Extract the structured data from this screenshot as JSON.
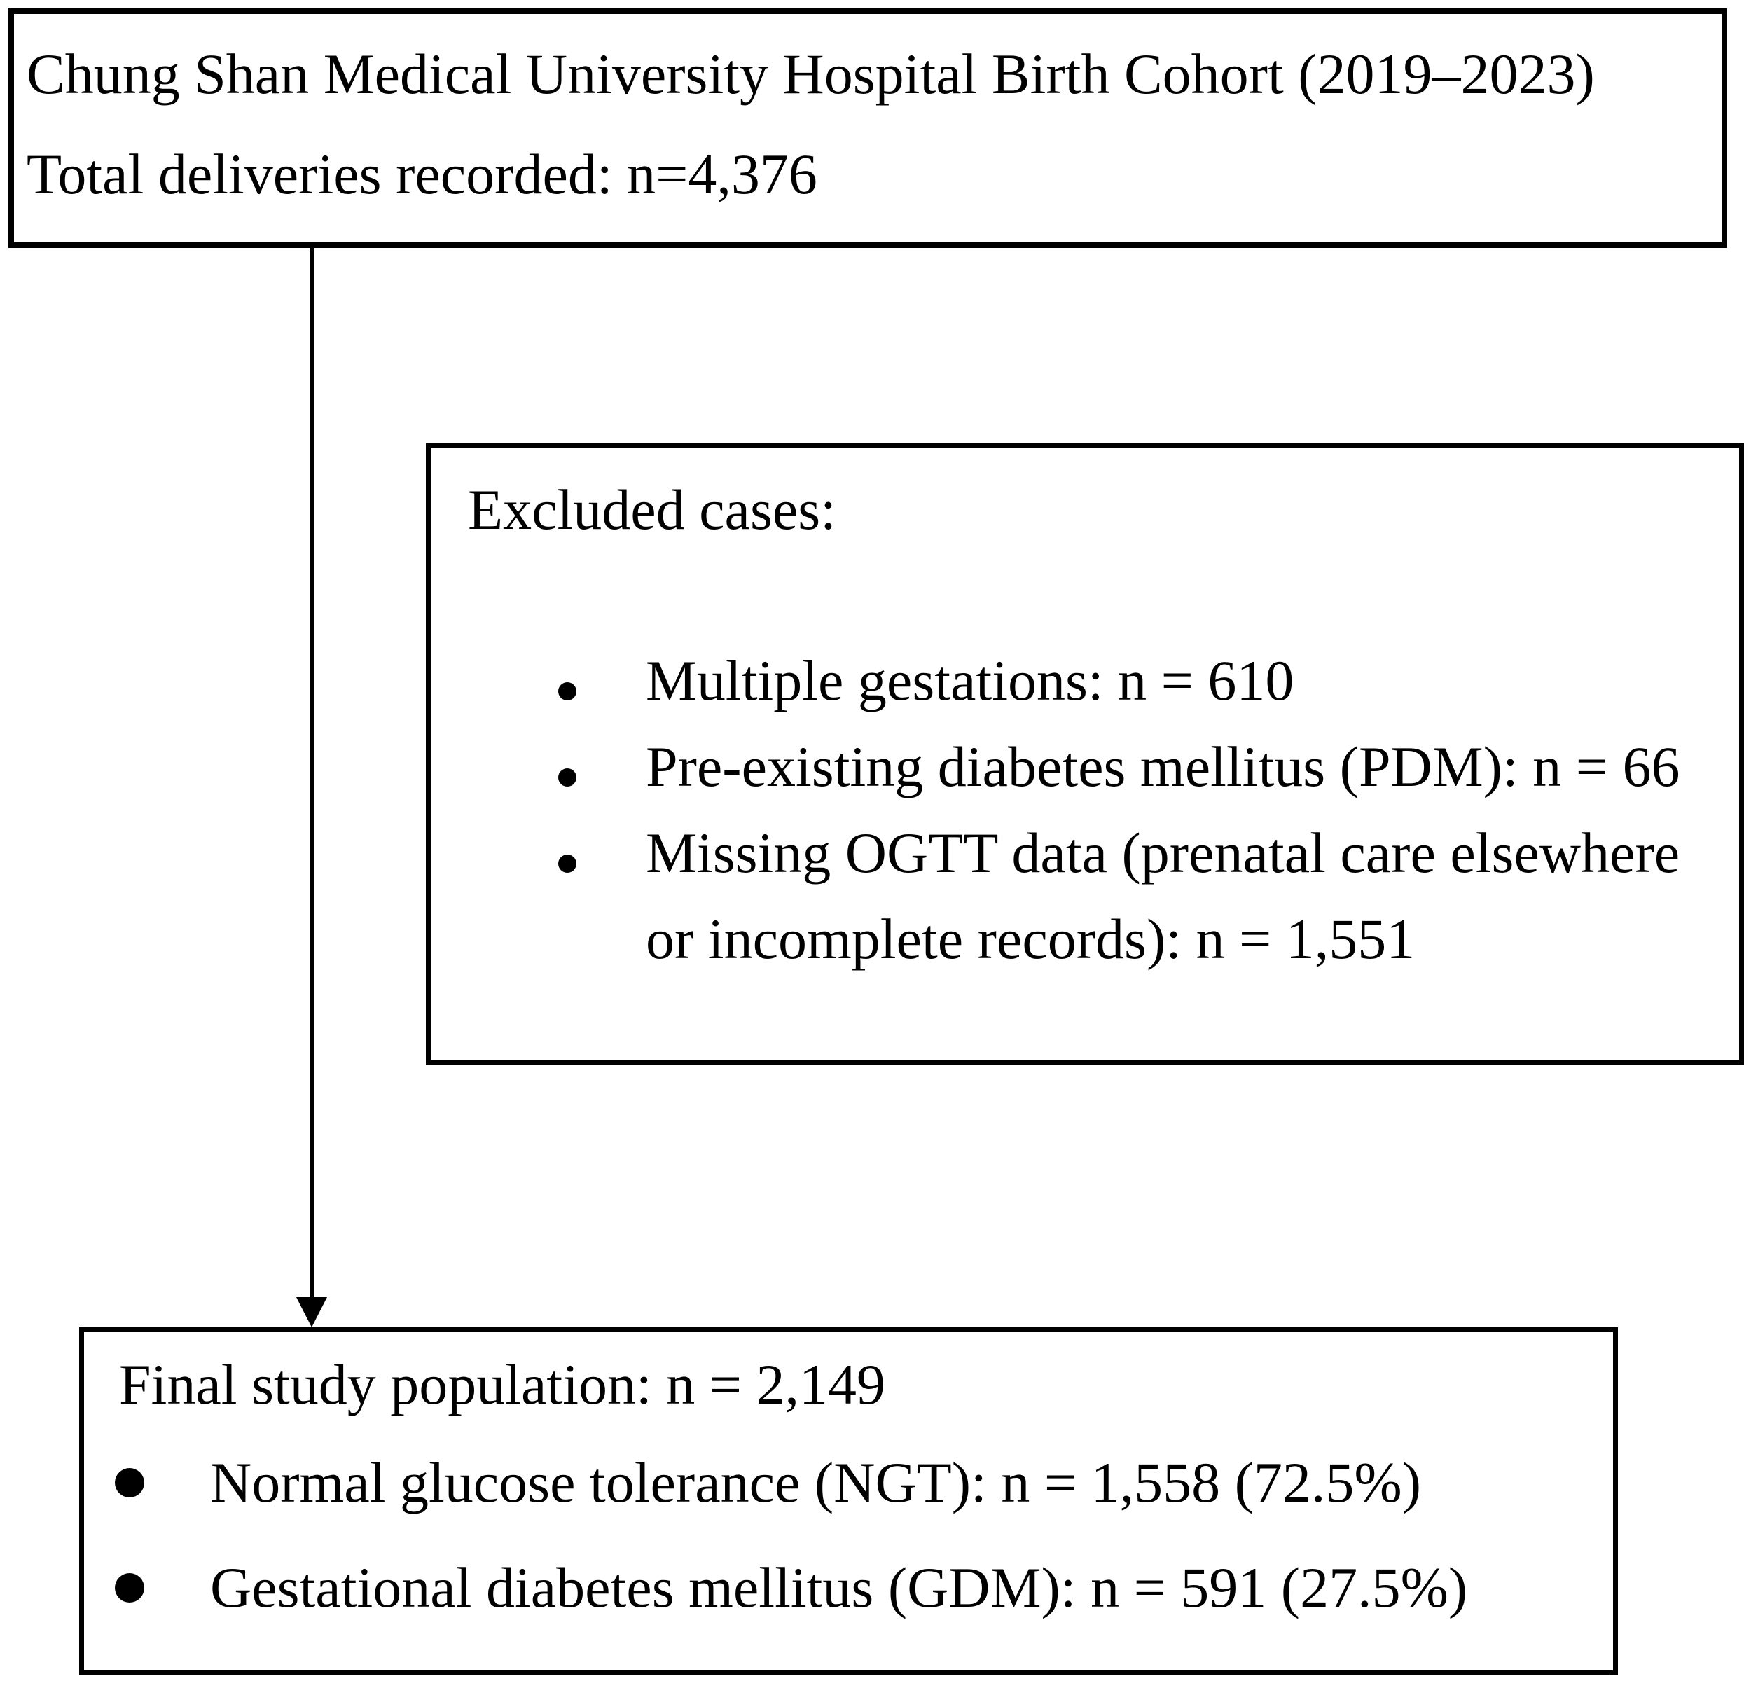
{
  "colors": {
    "ink": "#000000",
    "background": "#ffffff"
  },
  "cohort_box": {
    "line1": "Chung Shan Medical University Hospital Birth Cohort (2019–2023)",
    "line2": "Total deliveries recorded: n=4,376"
  },
  "excluded_box": {
    "heading": "Excluded cases:",
    "bullets": [
      "Multiple gestations: n = 610",
      "Pre-existing diabetes mellitus (PDM): n = 66",
      "Missing OGTT data (prenatal care elsewhere or incomplete records): n = 1,551"
    ]
  },
  "final_box": {
    "line1": "Final study population: n = 2,149",
    "bullets": [
      "Normal glucose tolerance (NGT): n = 1,558 (72.5%)",
      "Gestational diabetes mellitus (GDM): n = 591 (27.5%)"
    ]
  }
}
